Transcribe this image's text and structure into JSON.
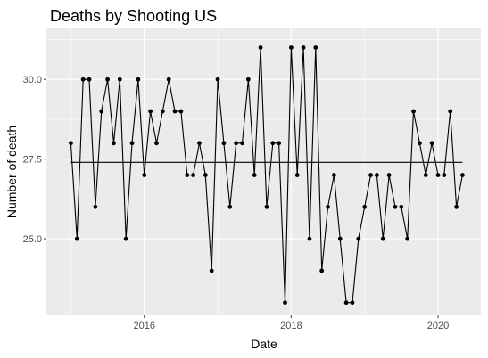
{
  "chart_data": {
    "type": "line",
    "title": "Deaths by Shooting US",
    "xlabel": "Date",
    "ylabel": "Number of death",
    "x_tick_labels": [
      "2016",
      "2018",
      "2020"
    ],
    "y_tick_labels": [
      "25.0",
      "27.5",
      "30.0"
    ],
    "y_ticks": [
      25.0,
      27.5,
      30.0
    ],
    "x_ticks": [
      "2016-01",
      "2018-01",
      "2020-01"
    ],
    "xlim": [
      "2014-09",
      "2020-08"
    ],
    "ylim": [
      22.6,
      31.6
    ],
    "grid": true,
    "legend": "none",
    "colors": {
      "panel_background": "#ebebeb",
      "grid_major": "#ffffff",
      "line": "#000000",
      "point": "#000000",
      "tick_label": "#4d4d4d"
    },
    "series": [
      {
        "x": [
          "2015-01",
          "2015-02",
          "2015-03",
          "2015-04",
          "2015-05",
          "2015-06",
          "2015-07",
          "2015-08",
          "2015-09",
          "2015-10",
          "2015-11",
          "2015-12",
          "2016-01",
          "2016-02",
          "2016-03",
          "2016-04",
          "2016-05",
          "2016-06",
          "2016-07",
          "2016-08",
          "2016-09",
          "2016-10",
          "2016-11",
          "2016-12",
          "2017-01",
          "2017-02",
          "2017-03",
          "2017-04",
          "2017-05",
          "2017-06",
          "2017-07",
          "2017-08",
          "2017-09",
          "2017-10",
          "2017-11",
          "2017-12",
          "2018-01",
          "2018-02",
          "2018-03",
          "2018-04",
          "2018-05",
          "2018-06",
          "2018-07",
          "2018-08",
          "2018-09",
          "2018-10",
          "2018-11",
          "2018-12",
          "2019-01",
          "2019-02",
          "2019-03",
          "2019-04",
          "2019-05",
          "2019-06",
          "2019-07",
          "2019-08",
          "2019-09",
          "2019-10",
          "2019-11",
          "2019-12",
          "2020-01",
          "2020-02",
          "2020-03",
          "2020-04",
          "2020-05"
        ],
        "values": [
          28,
          25,
          30,
          30,
          26,
          29,
          30,
          28,
          30,
          25,
          28,
          30,
          27,
          29,
          28,
          29,
          30,
          29,
          29,
          27,
          27,
          28,
          27,
          24,
          30,
          28,
          26,
          28,
          28,
          30,
          27,
          31,
          26,
          28,
          28,
          23,
          31,
          27,
          31,
          25,
          31,
          24,
          26,
          27,
          25,
          23,
          23,
          25,
          26,
          27,
          27,
          25,
          27,
          26,
          26,
          25,
          29,
          28,
          27,
          28,
          27,
          27,
          29,
          26,
          27
        ]
      }
    ],
    "reference_line": {
      "y": 27.4,
      "x_start": "2015-01",
      "x_end": "2020-05"
    }
  }
}
